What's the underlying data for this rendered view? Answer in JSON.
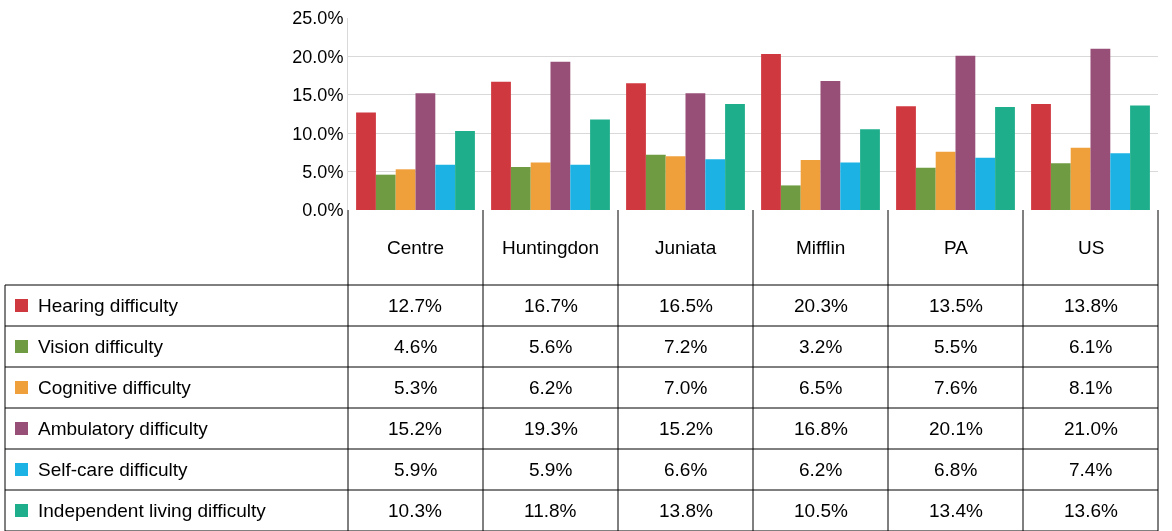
{
  "chart_data": {
    "type": "bar",
    "categories": [
      "Centre",
      "Huntingdon",
      "Juniata",
      "Mifflin",
      "PA",
      "US"
    ],
    "series": [
      {
        "name": "Hearing difficulty",
        "color": "#d0383f",
        "values": [
          12.7,
          16.7,
          16.5,
          20.3,
          13.5,
          13.8
        ],
        "value_labels": [
          "12.7%",
          "16.7%",
          "16.5%",
          "20.3%",
          "13.5%",
          "13.8%"
        ]
      },
      {
        "name": "Vision difficulty",
        "color": "#6f9c42",
        "values": [
          4.6,
          5.6,
          7.2,
          3.2,
          5.5,
          6.1
        ],
        "value_labels": [
          "4.6%",
          "5.6%",
          "7.2%",
          "3.2%",
          "5.5%",
          "6.1%"
        ]
      },
      {
        "name": "Cognitive difficulty",
        "color": "#f0a03b",
        "values": [
          5.3,
          6.2,
          7.0,
          6.5,
          7.6,
          8.1
        ],
        "value_labels": [
          "5.3%",
          "6.2%",
          "7.0%",
          "6.5%",
          "7.6%",
          "8.1%"
        ]
      },
      {
        "name": "Ambulatory difficulty",
        "color": "#984f77",
        "values": [
          15.2,
          19.3,
          15.2,
          16.8,
          20.1,
          21.0
        ],
        "value_labels": [
          "15.2%",
          "19.3%",
          "15.2%",
          "16.8%",
          "20.1%",
          "21.0%"
        ]
      },
      {
        "name": "Self-care difficulty",
        "color": "#1db2e4",
        "values": [
          5.9,
          5.9,
          6.6,
          6.2,
          6.8,
          7.4
        ],
        "value_labels": [
          "5.9%",
          "5.9%",
          "6.6%",
          "6.2%",
          "6.8%",
          "7.4%"
        ]
      },
      {
        "name": "Independent living difficulty",
        "color": "#1eae8b",
        "values": [
          10.3,
          11.8,
          13.8,
          10.5,
          13.4,
          13.6
        ],
        "value_labels": [
          "10.3%",
          "11.8%",
          "13.8%",
          "10.5%",
          "13.4%",
          "13.6%"
        ]
      }
    ],
    "ylim": [
      0,
      25
    ],
    "yticks": [
      {
        "value": 0,
        "label": "0.0%"
      },
      {
        "value": 5,
        "label": "5.0%"
      },
      {
        "value": 10,
        "label": "10.0%"
      },
      {
        "value": 15,
        "label": "15.0%"
      },
      {
        "value": 20,
        "label": "20.0%"
      },
      {
        "value": 25,
        "label": "25.0%"
      }
    ],
    "grid": "y",
    "legend": "left"
  }
}
